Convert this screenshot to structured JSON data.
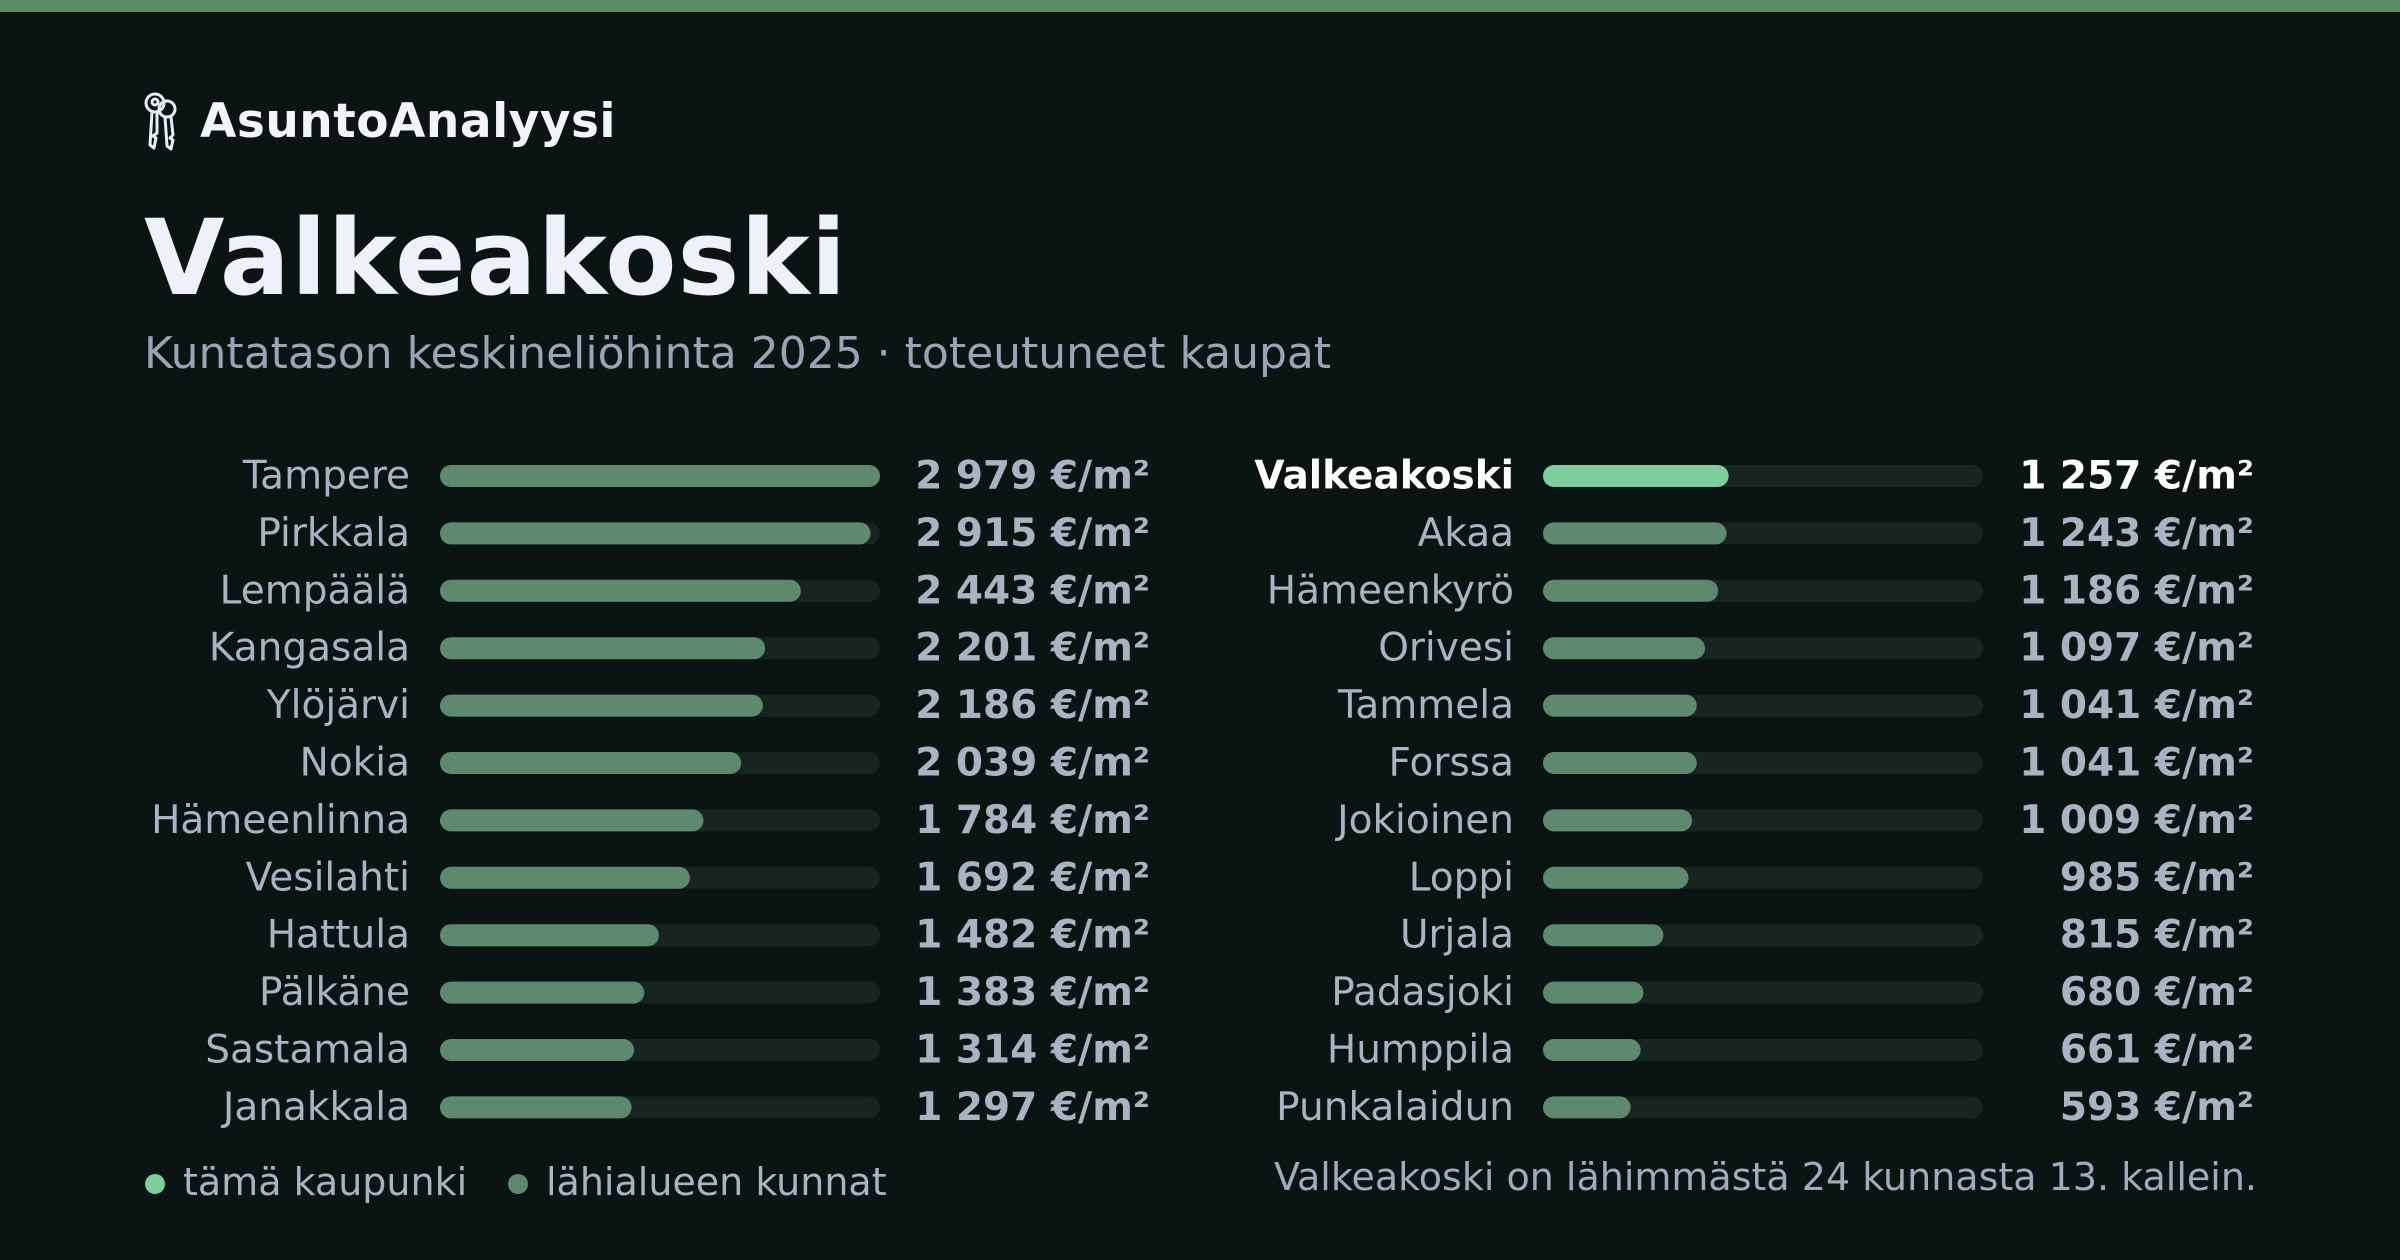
{
  "brand": {
    "name": "AsuntoAnalyysi",
    "icon": "keys-icon"
  },
  "title": "Valkeakoski",
  "subtitle": "Kuntatason keskineliöhinta 2025 · toteutuneet kaupat",
  "colors": {
    "background": "#0a1412",
    "accent_top": "#5d8c63",
    "highlight_bar": "#7ccf9a",
    "bar": "#5d8a6e",
    "track": "#18241f",
    "label": "#aab3c2",
    "label_highlight": "#ffffff"
  },
  "chart_data": {
    "type": "bar",
    "orientation": "horizontal",
    "unit": "€/m²",
    "xlim": [
      0,
      2979
    ],
    "highlight": "Valkeakoski",
    "columns": [
      {
        "categories": [
          "Tampere",
          "Pirkkala",
          "Lempäälä",
          "Kangasala",
          "Ylöjärvi",
          "Nokia",
          "Hämeenlinna",
          "Vesilahti",
          "Hattula",
          "Pälkäne",
          "Sastamala",
          "Janakkala"
        ],
        "values": [
          2979,
          2915,
          2443,
          2201,
          2186,
          2039,
          1784,
          1692,
          1482,
          1383,
          1314,
          1297
        ],
        "labels": [
          "2 979 €/m²",
          "2 915 €/m²",
          "2 443 €/m²",
          "2 201 €/m²",
          "2 186 €/m²",
          "2 039 €/m²",
          "1 784 €/m²",
          "1 692 €/m²",
          "1 482 €/m²",
          "1 383 €/m²",
          "1 314 €/m²",
          "1 297 €/m²"
        ]
      },
      {
        "categories": [
          "Valkeakoski",
          "Akaa",
          "Hämeenkyrö",
          "Orivesi",
          "Tammela",
          "Forssa",
          "Jokioinen",
          "Loppi",
          "Urjala",
          "Padasjoki",
          "Humppila",
          "Punkalaidun"
        ],
        "values": [
          1257,
          1243,
          1186,
          1097,
          1041,
          1041,
          1009,
          985,
          815,
          680,
          661,
          593
        ],
        "labels": [
          "1 257 €/m²",
          "1 243 €/m²",
          "1 186 €/m²",
          "1 097 €/m²",
          "1 041 €/m²",
          "1 041 €/m²",
          "1 009 €/m²",
          "985 €/m²",
          "815 €/m²",
          "680 €/m²",
          "661 €/m²",
          "593 €/m²"
        ]
      }
    ],
    "legend": [
      {
        "label": "tämä kaupunki",
        "color": "#7ccf9a"
      },
      {
        "label": "lähialueen kunnat",
        "color": "#5d8a6e"
      }
    ],
    "legend_position": "bottom-left",
    "grid": false
  },
  "footer": {
    "note": "Valkeakoski on lähimmästä 24 kunnasta 13. kallein."
  }
}
